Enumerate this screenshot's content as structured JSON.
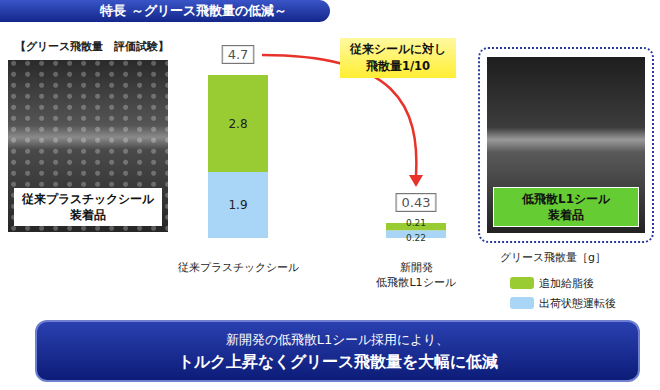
{
  "header": {
    "title": "特長 ～グリース飛散量の低減～"
  },
  "panels": [
    {
      "caption": [
        "従来プラスチックシール",
        "装着品"
      ]
    },
    {
      "caption": [
        "低飛散L1シール",
        "装着品"
      ]
    }
  ],
  "footer": [
    "新開発の低飛散L1シール採用により、",
    "トルク上昇なくグリース飛散量を大幅に低減"
  ],
  "chart_data": {
    "type": "bar",
    "stacked": true,
    "subtitle": "【グリース飛散量　評価試験】",
    "categories": [
      "従来プラスチックシール",
      "新開発\n低飛散L1シール"
    ],
    "series": [
      {
        "name": "出荷状態運転後",
        "color": "#a9d5f7",
        "values": [
          1.9,
          0.22
        ]
      },
      {
        "name": "追加給脂後",
        "color": "#99cc33",
        "values": [
          2.8,
          0.21
        ]
      }
    ],
    "totals": [
      4.7,
      0.43
    ],
    "annotation": [
      "従来シールに対し",
      "飛散量1/10"
    ],
    "legend_title": "グリース飛散量［g］",
    "legend": "right",
    "ylim": [
      0,
      4.7
    ],
    "yticks": [],
    "grid": false,
    "data_labels": true,
    "tick_labels": "x"
  }
}
